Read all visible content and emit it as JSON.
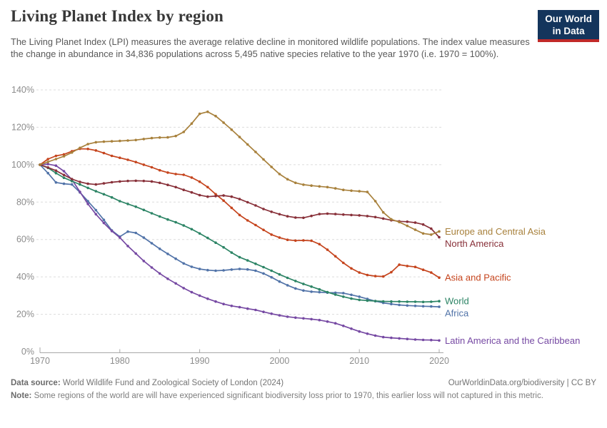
{
  "header": {
    "title": "Living Planet Index by region",
    "subtitle": "The Living Planet Index (LPI) measures the average relative decline in monitored wildlife populations. The index value measures the change in abundance in 34,836 populations across 5,495 native species relative to the year 1970 (i.e. 1970 = 100%).",
    "logo": {
      "line1": "Our World",
      "line2": "in Data",
      "bg_color": "#14355C",
      "bar_color": "#C12A29"
    }
  },
  "footer": {
    "source_label": "Data source:",
    "source_text": " World Wildlife Fund and Zoological Society of London (2024)",
    "link_text": "OurWorldinData.org/biodiversity | CC BY",
    "note_label": "Note:",
    "note_text": " Some regions of the world are will have experienced significant biodiversity loss prior to 1970, this earlier loss will not captured in this metric."
  },
  "chart_data": {
    "type": "line",
    "title": "Living Planet Index by region",
    "xlabel": "",
    "ylabel": "",
    "ylim": [
      0,
      140
    ],
    "yticks": [
      0,
      20,
      40,
      60,
      80,
      100,
      120,
      140
    ],
    "ytick_suffix": "%",
    "xticks": [
      1970,
      1980,
      1990,
      2000,
      2010,
      2020
    ],
    "grid": "horizontal-dashed",
    "legend_position": "right-of-line-ends",
    "axis_color": "#A8A8A8",
    "grid_color": "#DCDCDC",
    "tick_label_color": "#8C8C8C",
    "x": [
      1970,
      1971,
      1972,
      1973,
      1974,
      1975,
      1976,
      1977,
      1978,
      1979,
      1980,
      1981,
      1982,
      1983,
      1984,
      1985,
      1986,
      1987,
      1988,
      1989,
      1990,
      1991,
      1992,
      1993,
      1994,
      1995,
      1996,
      1997,
      1998,
      1999,
      2000,
      2001,
      2002,
      2003,
      2004,
      2005,
      2006,
      2007,
      2008,
      2009,
      2010,
      2011,
      2012,
      2013,
      2014,
      2015,
      2016,
      2017,
      2018,
      2019,
      2020
    ],
    "series": [
      {
        "name": "Europe and Central Asia",
        "color": "#A8813C",
        "values": [
          100,
          101.5,
          103,
          104.5,
          106.5,
          109,
          111,
          112,
          112.3,
          112.5,
          112.7,
          112.9,
          113.2,
          113.7,
          114.2,
          114.5,
          114.6,
          115.3,
          117.5,
          122,
          127.2,
          128.3,
          126,
          122.5,
          118.7,
          114.8,
          110.8,
          106.8,
          102.8,
          98.8,
          95,
          92.2,
          90.3,
          89.3,
          88.8,
          88.4,
          88,
          87.3,
          86.5,
          86.1,
          85.8,
          85.4,
          80.5,
          74.5,
          70.8,
          69.3,
          67.3,
          65.2,
          63.2,
          62.6,
          64.3
        ]
      },
      {
        "name": "North America",
        "color": "#883039",
        "values": [
          100,
          98.5,
          96.8,
          94.5,
          92.3,
          90.8,
          89.8,
          89.4,
          90,
          90.6,
          91,
          91.3,
          91.4,
          91.3,
          91,
          90.3,
          89.2,
          88,
          86.5,
          85.2,
          83.7,
          82.9,
          83.2,
          83.5,
          82.9,
          81.6,
          79.9,
          78.2,
          76.3,
          74.8,
          73.5,
          72.4,
          71.7,
          71.6,
          72.6,
          73.6,
          73.8,
          73.6,
          73.3,
          73.1,
          72.9,
          72.5,
          72,
          71.2,
          70.3,
          69.7,
          69.5,
          69,
          68,
          65.8,
          61.2
        ]
      },
      {
        "name": "Asia and Pacific",
        "color": "#C5441D",
        "values": [
          100,
          103,
          104.7,
          105.5,
          107.2,
          108.5,
          108.4,
          107.6,
          106.2,
          104.7,
          103.7,
          102.6,
          101.4,
          100,
          98.6,
          97,
          95.8,
          95,
          94.6,
          93.1,
          90.9,
          88,
          84.2,
          80.8,
          76.9,
          73.1,
          70.2,
          67.7,
          65.1,
          62.6,
          61,
          59.8,
          59.4,
          59.5,
          59.3,
          57.5,
          54.5,
          51,
          47.5,
          44.5,
          42.3,
          41,
          40.4,
          40.2,
          42.5,
          46.5,
          45.8,
          45.3,
          43.8,
          42.3,
          39.6
        ]
      },
      {
        "name": "World",
        "color": "#2C8465",
        "values": [
          100,
          98.3,
          95.5,
          93,
          91.2,
          89.4,
          87.6,
          85.8,
          84.2,
          82.5,
          80.5,
          79,
          77.5,
          75.8,
          74,
          72.3,
          70.7,
          69.2,
          67.5,
          65.5,
          63.2,
          60.8,
          58.3,
          55.8,
          53,
          50.5,
          48.8,
          47,
          45.2,
          43.3,
          41.3,
          39.5,
          37.8,
          36.2,
          34.8,
          33.3,
          31.8,
          30.5,
          29.4,
          28.4,
          27.7,
          27.3,
          27.1,
          26.9,
          26.8,
          26.8,
          26.7,
          26.7,
          26.6,
          26.7,
          27
        ]
      },
      {
        "name": "Africa",
        "color": "#5173A8",
        "values": [
          100,
          95.5,
          90.5,
          89.8,
          89.4,
          85.2,
          80.5,
          75.7,
          70.5,
          64.8,
          61.5,
          64.2,
          63.5,
          61,
          58,
          55,
          52.3,
          49.7,
          47.2,
          45.4,
          44.2,
          43.6,
          43.3,
          43.5,
          43.9,
          44.2,
          44,
          43.3,
          41.8,
          39.8,
          37.5,
          35.5,
          33.8,
          32.7,
          32.1,
          31.8,
          31.6,
          31.5,
          31.3,
          30.4,
          29.4,
          28.2,
          27,
          26.1,
          25.5,
          25,
          24.7,
          24.5,
          24.3,
          24.2,
          24
        ]
      },
      {
        "name": "Latin America and the Caribbean",
        "color": "#7649A3",
        "values": [
          100,
          100.3,
          99.5,
          96.5,
          92,
          85.5,
          79,
          73.5,
          68.8,
          64.5,
          61,
          56.5,
          52.5,
          48.5,
          45,
          41.8,
          39,
          36.5,
          34,
          31.8,
          30,
          28.3,
          26.8,
          25.5,
          24.5,
          23.8,
          23,
          22.3,
          21.3,
          20.3,
          19.4,
          18.7,
          18.2,
          17.8,
          17.4,
          16.9,
          16.1,
          15.2,
          13.8,
          12.3,
          10.8,
          9.6,
          8.6,
          7.8,
          7.4,
          7.1,
          6.8,
          6.5,
          6.3,
          6.2,
          6
        ]
      }
    ]
  }
}
